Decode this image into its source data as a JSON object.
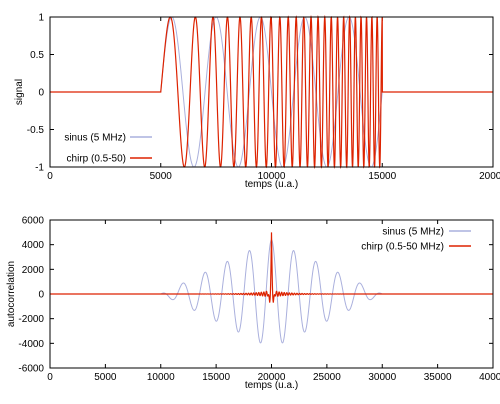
{
  "chart_data": [
    {
      "type": "line",
      "xlabel": "temps (u.a.)",
      "ylabel": "signal",
      "xlim": [
        0,
        20000
      ],
      "ylim": [
        -1,
        1
      ],
      "x_ticks": [
        "0",
        "5000",
        "10000",
        "15000",
        "20000"
      ],
      "y_ticks": [
        "1",
        "0.5",
        "0",
        "-0.5",
        "-1"
      ],
      "grid": false,
      "legend_position": "bottom-left",
      "series": [
        {
          "name": "sinus (5 MHz)",
          "color": "#aab0dd",
          "description_params": {
            "start": 5000,
            "end": 15000,
            "amplitude": 1,
            "form": "sinusoid"
          }
        },
        {
          "name": "chirp (0.5-50)",
          "color": "#dd2200",
          "description_params": {
            "start": 5000,
            "end": 15000,
            "amplitude": 1,
            "form": "linear chirp"
          }
        }
      ]
    },
    {
      "type": "line",
      "xlabel": "temps (u.a.)",
      "ylabel": "autocorrelation",
      "xlim": [
        0,
        40000
      ],
      "ylim": [
        -6000,
        6000
      ],
      "x_ticks": [
        "0",
        "5000",
        "10000",
        "15000",
        "20000",
        "25000",
        "30000",
        "35000",
        "40000"
      ],
      "y_ticks": [
        "6000",
        "4000",
        "2000",
        "0",
        "-2000",
        "-4000",
        "-6000"
      ],
      "grid": false,
      "legend_position": "top-right",
      "series": [
        {
          "name": "sinus (5 MHz)",
          "color": "#aab0dd",
          "description_params": {
            "center": 20000,
            "peak": 5000,
            "support": [
              10000,
              30000
            ],
            "form": "triangular-envelope sinusoid"
          }
        },
        {
          "name": "chirp (0.5-50 MHz)",
          "color": "#dd2200",
          "description_params": {
            "center": 20000,
            "peak": 5000,
            "min": -1300,
            "form": "compressed pulse"
          }
        }
      ]
    }
  ]
}
